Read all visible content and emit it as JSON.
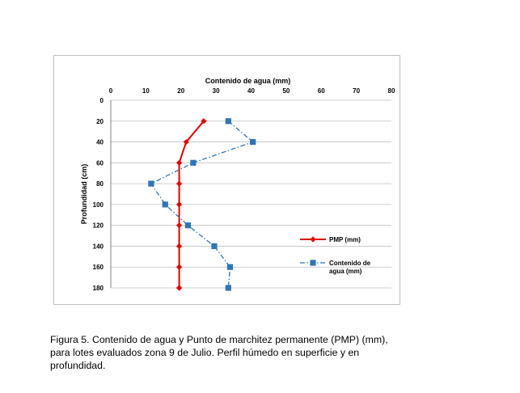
{
  "chart_data": {
    "type": "line",
    "title": "",
    "xlabel": "Contenido de agua (mm)",
    "ylabel": "Profundidad (cm)",
    "xlim": [
      0,
      80
    ],
    "ylim": [
      0,
      180
    ],
    "y_reversed": true,
    "x_axis_position": "top",
    "xticks": [
      "0",
      "10",
      "20",
      "30",
      "40",
      "50",
      "60",
      "70",
      "80"
    ],
    "yticks": [
      "0",
      "20",
      "40",
      "60",
      "80",
      "100",
      "120",
      "140",
      "160",
      "180"
    ],
    "grid": "horizontal",
    "legend_position": "right",
    "series": [
      {
        "name": "PMP (mm)",
        "color": "#e00000",
        "line_style": "solid",
        "marker": "diamond",
        "x": [
          26.5,
          21.5,
          19.5,
          19.5,
          19.5,
          19.5,
          19.5,
          19.5,
          19.5,
          19.5
        ],
        "y": [
          20,
          40,
          60,
          80,
          100,
          120,
          140,
          160,
          180,
          180
        ]
      },
      {
        "name_lines": [
          "Contenido de",
          "agua (mm)"
        ],
        "color": "#2e75b6",
        "line_style": "dash-dot",
        "marker": "square",
        "x": [
          33.5,
          40.5,
          23.5,
          11.5,
          15.5,
          22,
          29.5,
          34,
          33.5
        ],
        "y": [
          20,
          40,
          60,
          80,
          100,
          120,
          140,
          160,
          180
        ]
      }
    ]
  },
  "caption_lines": [
    "Figura 5. Contenido de agua y Punto de marchitez permanente (PMP) (mm),",
    "para lotes evaluados zona 9 de Julio.  Perfil húmedo en superficie y en",
    "profundidad."
  ]
}
